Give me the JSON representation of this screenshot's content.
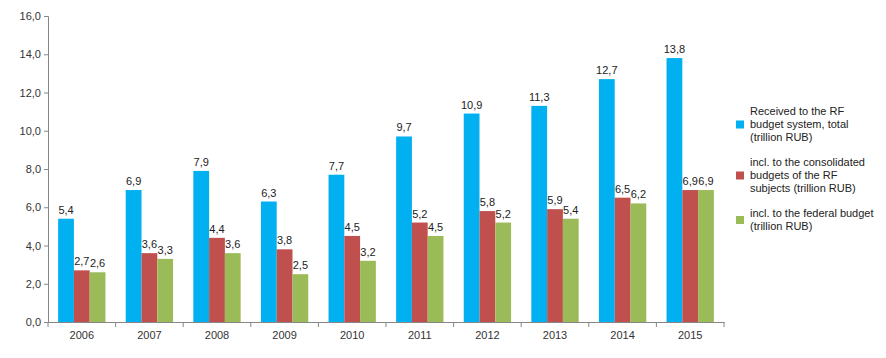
{
  "chart_data": {
    "type": "bar",
    "categories": [
      "2006",
      "2007",
      "2008",
      "2009",
      "2010",
      "2011",
      "2012",
      "2013",
      "2014",
      "2015"
    ],
    "series": [
      {
        "name": "Received to the RF budget system, total (trillion RUB)",
        "color": "#00b0f0",
        "values": [
          5.4,
          6.9,
          7.9,
          6.3,
          7.7,
          9.7,
          10.9,
          11.3,
          12.7,
          13.8
        ],
        "value_labels": [
          "5,4",
          "6,9",
          "7,9",
          "6,3",
          "7,7",
          "9,7",
          "10,9",
          "11,3",
          "12,7",
          "13,8"
        ]
      },
      {
        "name": "incl. to the consolidated budgets of the RF subjects (trillion RUB)",
        "color": "#c0504d",
        "values": [
          2.7,
          3.6,
          4.4,
          3.8,
          4.5,
          5.2,
          5.8,
          5.9,
          6.5,
          6.9
        ],
        "value_labels": [
          "2,7",
          "3,6",
          "4,4",
          "3,8",
          "4,5",
          "5,2",
          "5,8",
          "5,9",
          "6,5",
          "6,9"
        ]
      },
      {
        "name": "incl. to the federal budget (trillion RUB)",
        "color": "#9bbb59",
        "values": [
          2.6,
          3.3,
          3.6,
          2.5,
          3.2,
          4.5,
          5.2,
          5.4,
          6.2,
          6.9
        ],
        "value_labels": [
          "2,6",
          "3,3",
          "3,6",
          "2,5",
          "3,2",
          "4,5",
          "5,2",
          "5,4",
          "6,2",
          "6,9"
        ]
      }
    ],
    "ylim": [
      0,
      16
    ],
    "yticks": [
      {
        "value": 0,
        "label": "0,0"
      },
      {
        "value": 2,
        "label": "2,0"
      },
      {
        "value": 4,
        "label": "4,0"
      },
      {
        "value": 6,
        "label": "6,0"
      },
      {
        "value": 8,
        "label": "8,0"
      },
      {
        "value": 10,
        "label": "10,0"
      },
      {
        "value": 12,
        "label": "12,0"
      },
      {
        "value": 14,
        "label": "14,0"
      },
      {
        "value": 16,
        "label": "16,0"
      }
    ],
    "grid": false,
    "legend": "right",
    "data_labels": true
  }
}
